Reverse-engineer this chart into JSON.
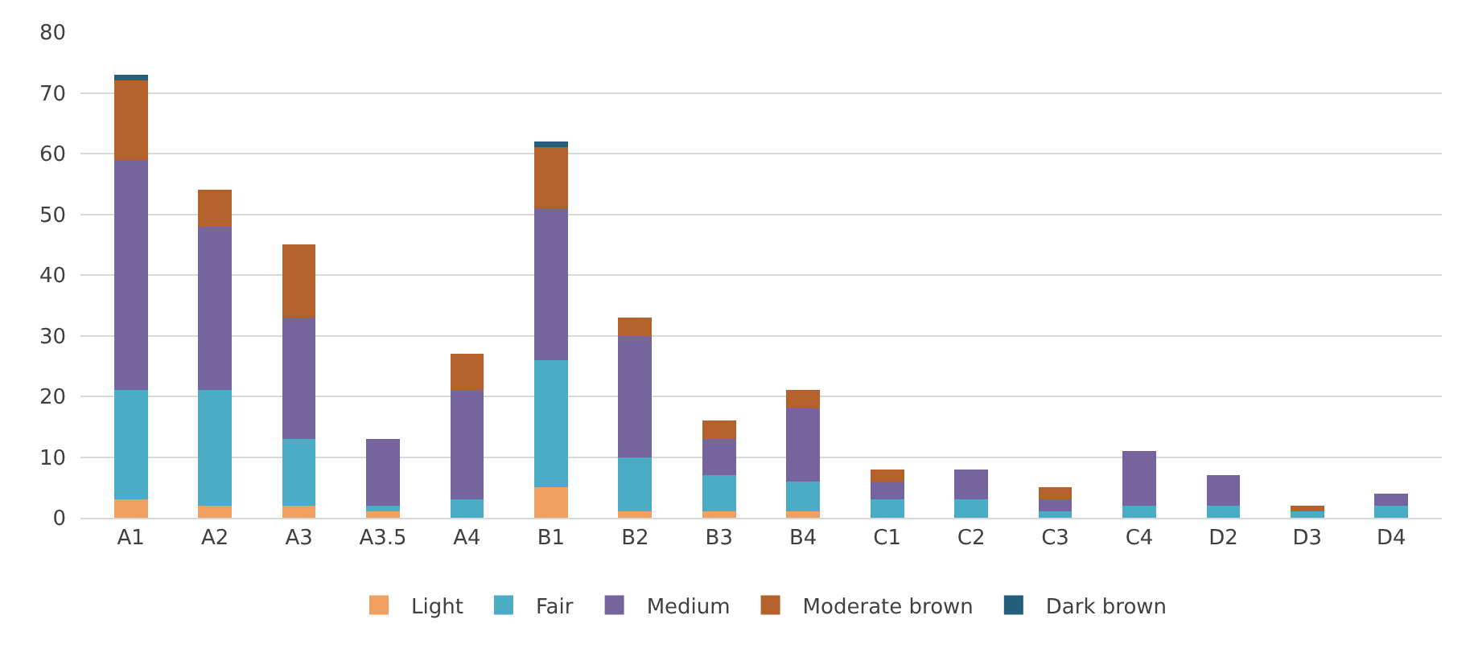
{
  "chart_data": {
    "type": "bar",
    "stacked": true,
    "categories": [
      "A1",
      "A2",
      "A3",
      "A3.5",
      "A4",
      "B1",
      "B2",
      "B3",
      "B4",
      "C1",
      "C2",
      "C3",
      "C4",
      "D2",
      "D3",
      "D4"
    ],
    "series": [
      {
        "name": "Light",
        "color": "#f0a060",
        "values": [
          3,
          2,
          2,
          1,
          0,
          5,
          1,
          1,
          1,
          0,
          0,
          0,
          0,
          0,
          0,
          0
        ]
      },
      {
        "name": "Fair",
        "color": "#4bacc6",
        "values": [
          18,
          19,
          11,
          1,
          3,
          21,
          9,
          6,
          5,
          3,
          3,
          1,
          2,
          2,
          1,
          2
        ]
      },
      {
        "name": "Medium",
        "color": "#76649e",
        "values": [
          38,
          27,
          20,
          11,
          18,
          25,
          20,
          6,
          12,
          3,
          5,
          2,
          9,
          5,
          0,
          2
        ]
      },
      {
        "name": "Moderate brown",
        "color": "#b5612b",
        "values": [
          13,
          6,
          12,
          0,
          6,
          10,
          3,
          3,
          3,
          2,
          0,
          2,
          0,
          0,
          1,
          0
        ]
      },
      {
        "name": "Dark brown",
        "color": "#235f7a",
        "values": [
          1,
          0,
          0,
          0,
          0,
          1,
          0,
          0,
          0,
          0,
          0,
          0,
          0,
          0,
          0,
          0
        ]
      }
    ],
    "ylim": [
      0,
      80
    ],
    "yticks": [
      0,
      10,
      20,
      30,
      40,
      50,
      60,
      70,
      80
    ],
    "grid": "y",
    "legend": "bottom"
  }
}
